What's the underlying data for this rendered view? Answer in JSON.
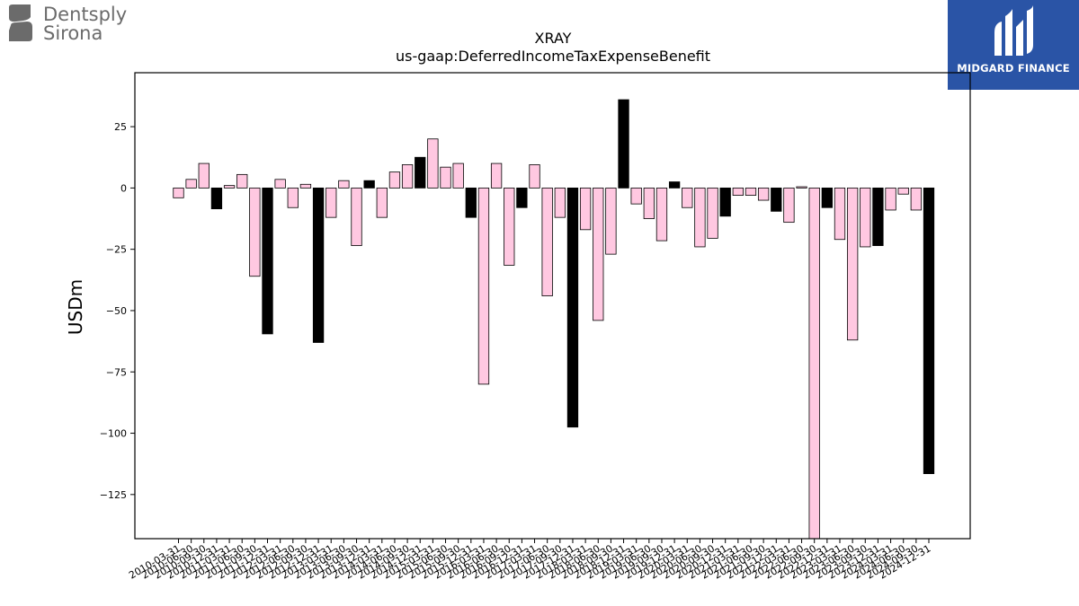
{
  "logos": {
    "left": {
      "line1": "Dentsply",
      "line2": "Sirona",
      "icon": "dentsply-s-icon"
    },
    "right": {
      "text": "MIDGARD FINANCE",
      "icon": "midgard-m-icon",
      "background": "#2a54a6"
    }
  },
  "colors": {
    "annual": "#000000",
    "quarterly": "#ffc8e1",
    "edge": "#000000"
  },
  "chart_data": {
    "type": "bar",
    "title": "XRAY",
    "subtitle": "us-gaap:DeferredIncomeTaxExpenseBenefit",
    "xlabel": "",
    "ylabel": "USDm",
    "ylim": [
      -143,
      47
    ],
    "yticks": [
      25,
      0,
      -25,
      -50,
      -75,
      -100,
      -125
    ],
    "grid": false,
    "legend": "none",
    "categories": [
      "2010-03-31",
      "2010-06-30",
      "2010-09-30",
      "2010-12-31",
      "2011-03-31",
      "2011-06-30",
      "2011-09-30",
      "2011-12-31",
      "2012-03-31",
      "2012-06-30",
      "2012-09-30",
      "2012-12-31",
      "2013-03-31",
      "2013-06-30",
      "2013-09-30",
      "2013-12-31",
      "2014-03-31",
      "2014-06-30",
      "2014-09-30",
      "2014-12-31",
      "2015-03-31",
      "2015-06-30",
      "2015-09-30",
      "2015-12-31",
      "2016-03-31",
      "2016-06-30",
      "2016-09-30",
      "2016-12-31",
      "2017-03-31",
      "2017-06-30",
      "2017-09-30",
      "2017-12-31",
      "2018-03-31",
      "2018-06-30",
      "2018-09-30",
      "2018-12-31",
      "2019-03-31",
      "2019-06-30",
      "2019-09-30",
      "2019-12-31",
      "2020-03-31",
      "2020-06-30",
      "2020-09-30",
      "2020-12-31",
      "2021-03-31",
      "2021-06-30",
      "2021-09-30",
      "2021-12-31",
      "2022-03-31",
      "2022-06-30",
      "2022-09-30",
      "2022-12-31",
      "2023-03-31",
      "2023-06-30",
      "2023-09-30",
      "2023-12-31",
      "2024-03-31",
      "2024-06-30",
      "2024-09-30",
      "2024-12-31"
    ],
    "values": [
      -4,
      3.5,
      10,
      -8.5,
      1,
      5.5,
      -36,
      -59.5,
      3.5,
      -8,
      1.5,
      -63,
      -12,
      3,
      -23.5,
      3,
      -12,
      6.5,
      9.5,
      12.5,
      20,
      8.5,
      10,
      -12,
      -80,
      10,
      -31.5,
      -8,
      9.5,
      -44,
      -12,
      -97.5,
      -17,
      -54,
      -27,
      36,
      -6.5,
      -12.5,
      -21.5,
      2.5,
      -8,
      -24,
      -20.5,
      -11.5,
      -3,
      -3,
      -5,
      -9.5,
      -14,
      0.5,
      -143,
      -8,
      -21,
      -62,
      -24,
      -23.5,
      -9,
      -2.5,
      -9,
      -116.5
    ],
    "bar_style": [
      "quarterly",
      "quarterly",
      "quarterly",
      "annual",
      "quarterly",
      "quarterly",
      "quarterly",
      "annual",
      "quarterly",
      "quarterly",
      "quarterly",
      "annual",
      "quarterly",
      "quarterly",
      "quarterly",
      "annual",
      "quarterly",
      "quarterly",
      "quarterly",
      "annual",
      "quarterly",
      "quarterly",
      "quarterly",
      "annual",
      "quarterly",
      "quarterly",
      "quarterly",
      "annual",
      "quarterly",
      "quarterly",
      "quarterly",
      "annual",
      "quarterly",
      "quarterly",
      "quarterly",
      "annual",
      "quarterly",
      "quarterly",
      "quarterly",
      "annual",
      "quarterly",
      "quarterly",
      "quarterly",
      "annual",
      "quarterly",
      "quarterly",
      "quarterly",
      "annual",
      "quarterly",
      "quarterly",
      "quarterly",
      "annual",
      "quarterly",
      "quarterly",
      "quarterly",
      "annual",
      "quarterly",
      "quarterly",
      "quarterly",
      "annual"
    ]
  }
}
